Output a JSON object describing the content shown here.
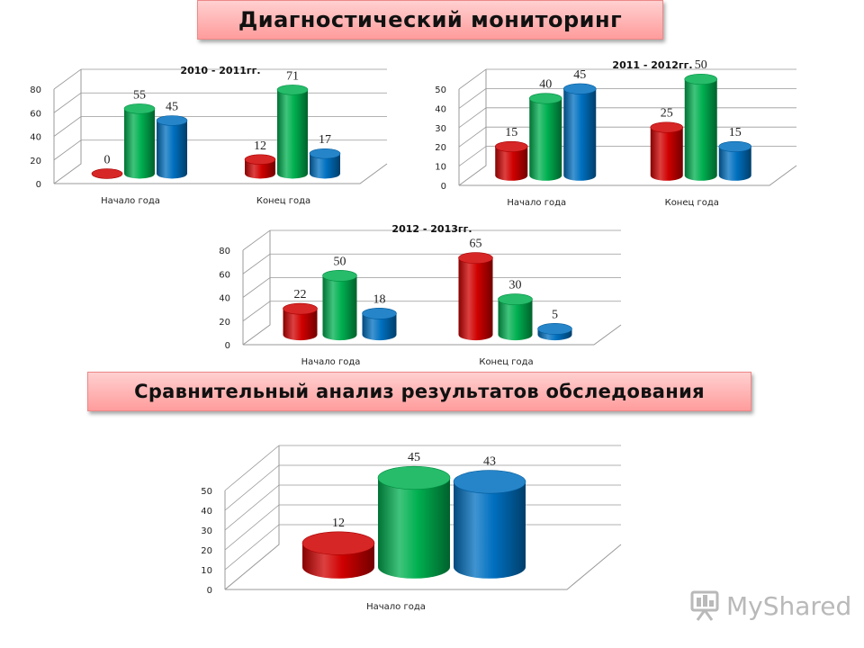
{
  "banners": {
    "top": "Диагностический мониторинг",
    "middle": "Сравнительный анализ результатов обследования"
  },
  "colors": {
    "red": "#d00000",
    "green": "#00b050",
    "blue": "#0070c0"
  },
  "logo": {
    "text": "MyShared",
    "icon": "presentation-board-icon"
  },
  "chart_data": [
    {
      "type": "bar",
      "title": "2010 - 2011гг.",
      "categories": [
        "Начало года",
        "Конец года"
      ],
      "series": [
        {
          "color": "red",
          "values": [
            0,
            12
          ]
        },
        {
          "color": "green",
          "values": [
            55,
            71
          ]
        },
        {
          "color": "blue",
          "values": [
            45,
            17
          ]
        }
      ],
      "ylim": [
        0,
        80
      ],
      "yticks": [
        0,
        20,
        40,
        60,
        80
      ],
      "grid": true
    },
    {
      "type": "bar",
      "title": "2011 - 2012гг.",
      "categories": [
        "Начало года",
        "Конец года"
      ],
      "series": [
        {
          "color": "red",
          "values": [
            15,
            25
          ]
        },
        {
          "color": "green",
          "values": [
            40,
            50
          ]
        },
        {
          "color": "blue",
          "values": [
            45,
            15
          ]
        }
      ],
      "ylim": [
        0,
        50
      ],
      "yticks": [
        0,
        10,
        20,
        30,
        40,
        50
      ],
      "grid": true
    },
    {
      "type": "bar",
      "title": "2012 - 2013гг.",
      "categories": [
        "Начало года",
        "Конец года"
      ],
      "series": [
        {
          "color": "red",
          "values": [
            22,
            65
          ]
        },
        {
          "color": "green",
          "values": [
            50,
            30
          ]
        },
        {
          "color": "blue",
          "values": [
            18,
            5
          ]
        }
      ],
      "ylim": [
        0,
        80
      ],
      "yticks": [
        0,
        20,
        40,
        60,
        80
      ],
      "grid": true
    },
    {
      "type": "bar",
      "title": "",
      "categories": [
        "Начало года"
      ],
      "series": [
        {
          "color": "red",
          "values": [
            12
          ]
        },
        {
          "color": "green",
          "values": [
            45
          ]
        },
        {
          "color": "blue",
          "values": [
            43
          ]
        }
      ],
      "ylim": [
        0,
        50
      ],
      "yticks": [
        0,
        10,
        20,
        30,
        40,
        50
      ],
      "grid": true
    }
  ]
}
